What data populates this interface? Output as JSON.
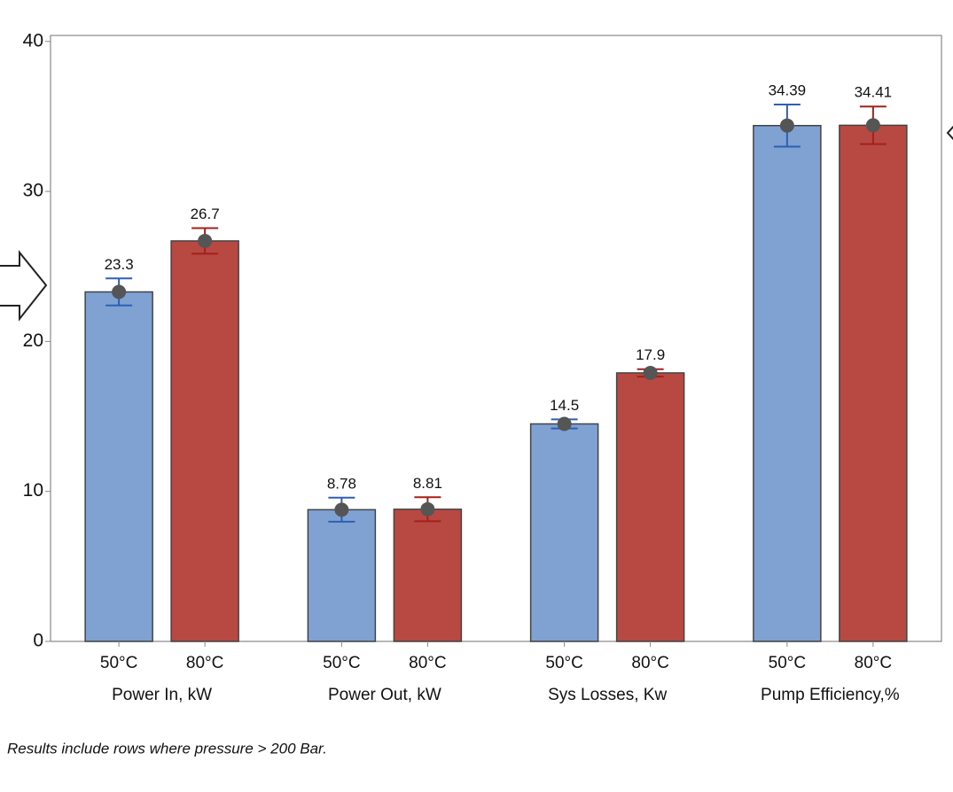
{
  "chart_data": {
    "type": "bar",
    "categories": [
      "Power In, kW",
      "Power Out, kW",
      "Sys Losses, Kw",
      "Pump Efficiency,%"
    ],
    "series": [
      {
        "name": "50°C",
        "color": "#7fa2d3",
        "error_color": "#2f5fb3",
        "values": [
          23.3,
          8.78,
          14.5,
          34.39
        ],
        "errors": [
          0.9,
          0.8,
          0.3,
          1.4
        ]
      },
      {
        "name": "80°C",
        "color": "#b84942",
        "error_color": "#a3201c",
        "values": [
          26.7,
          8.81,
          17.9,
          34.41
        ],
        "errors": [
          0.85,
          0.8,
          0.25,
          1.25
        ]
      }
    ],
    "ylim": [
      0,
      40.4
    ],
    "yticks": [
      0,
      10,
      20,
      30,
      40
    ],
    "grid": false,
    "footnote": "Results include rows where pressure > 200 Bar."
  }
}
